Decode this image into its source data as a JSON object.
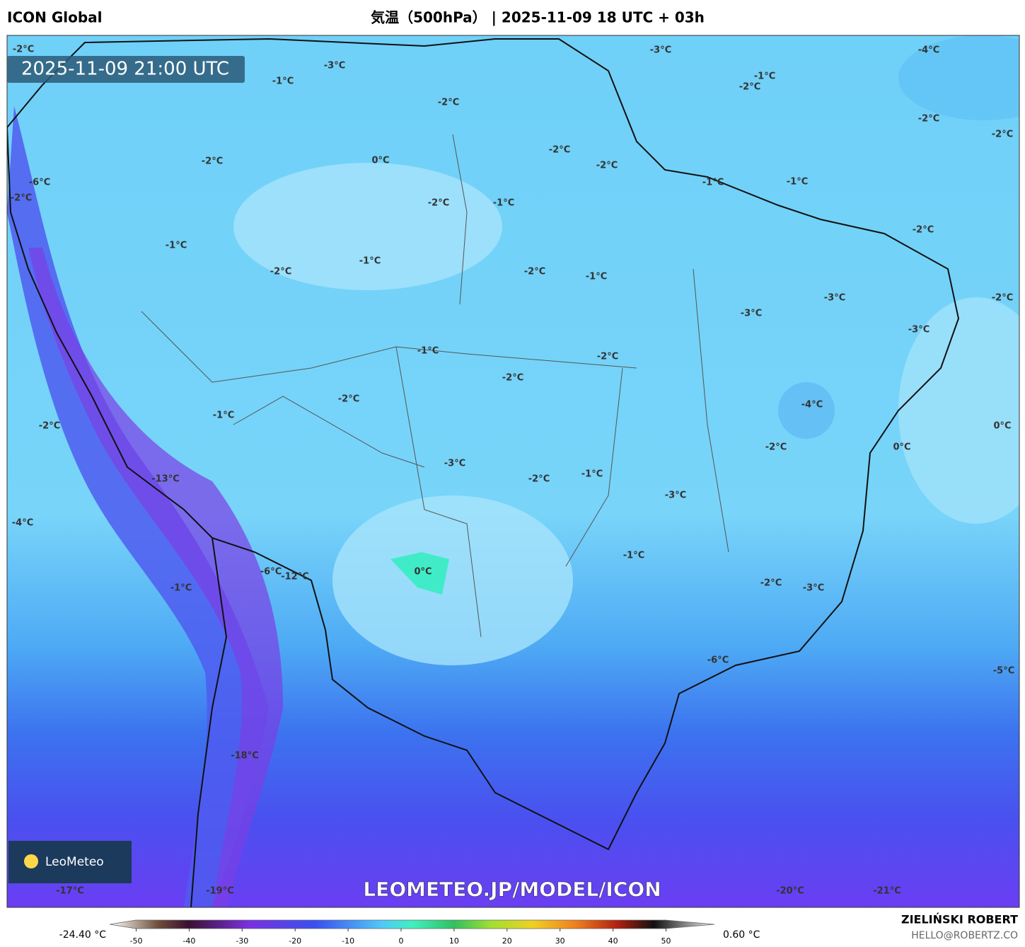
{
  "header": {
    "model": "ICON Global",
    "title": "気温（500hPa） | 2025-11-09 18 UTC + 03h"
  },
  "map": {
    "valid_time": "2025-11-09 21:00 UTC",
    "labels": [
      "-2°C",
      "-3°C",
      "-1°C",
      "-2°C",
      "-3°C",
      "-4°C",
      "-1°C",
      "-2°C",
      "-2°C",
      "-2°C",
      "-2°C",
      "-2°C",
      "0°C",
      "-2°C",
      "-6°C",
      "-2°C",
      "-1°C",
      "-1°C",
      "-2°C",
      "-1°C",
      "-2°C",
      "-1°C",
      "-1°C",
      "-2°C",
      "-2°C",
      "-1°C",
      "-2°C",
      "-3°C",
      "-3°C",
      "-3°C",
      "-1°C",
      "-2°C",
      "-2°C",
      "-2°C",
      "-4°C",
      "-1°C",
      "-2°C",
      "0°C",
      "0°C",
      "-2°C",
      "-3°C",
      "-1°C",
      "-2°C",
      "-13°C",
      "-3°C",
      "-4°C",
      "-1°C",
      "0°C",
      "-6°C",
      "-12°C",
      "-1°C",
      "-2°C",
      "-3°C",
      "-6°C",
      "-5°C",
      "-18°C",
      "-17°C",
      "-19°C",
      "-20°C",
      "-21°C"
    ],
    "watermark": "LEOMETEO.JP/MODEL/ICON",
    "logo": "LeoMeteo"
  },
  "colorbar": {
    "min_label": "-24.40 °C",
    "max_label": "0.60 °C",
    "ticks": [
      -50,
      -40,
      -30,
      -20,
      -10,
      0,
      10,
      20,
      30,
      40,
      50
    ]
  },
  "footer": {
    "author": "ZIELIŃSKI ROBERT",
    "email": "HELLO@ROBERTZ.CO"
  }
}
